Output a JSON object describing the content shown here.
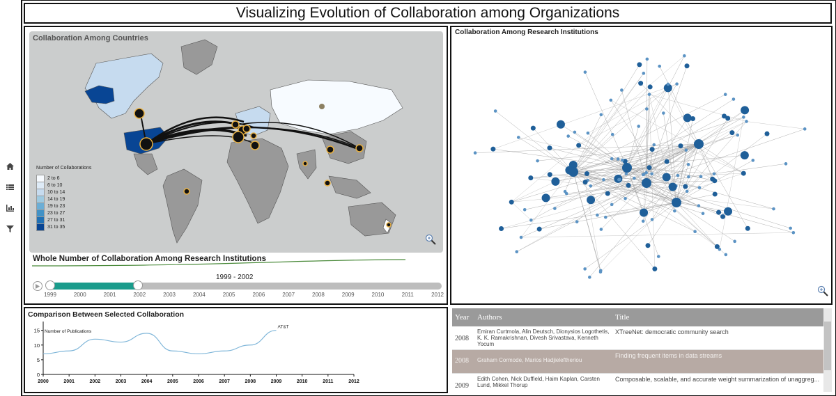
{
  "header": {
    "title": "Visualizing Evolution of Collaboration among Organizations"
  },
  "sidebar": {
    "icons": [
      "home-icon",
      "list-icon",
      "bar-chart-icon",
      "filter-icon"
    ]
  },
  "map_panel": {
    "title": "Collaboration Among Countries",
    "legend_title": "Number of Collaborations",
    "legend": [
      {
        "label": "2 to 6",
        "color": "#f7fbff"
      },
      {
        "label": "6 to 10",
        "color": "#deebf7"
      },
      {
        "label": "10 to 14",
        "color": "#c6dbef"
      },
      {
        "label": "14 to 19",
        "color": "#9ecae1"
      },
      {
        "label": "19 to 23",
        "color": "#6baed6"
      },
      {
        "label": "23 to 27",
        "color": "#4292c6"
      },
      {
        "label": "27 to 31",
        "color": "#2171b5"
      },
      {
        "label": "31 to 35",
        "color": "#084594"
      }
    ],
    "whole_title": "Whole Number of Collaboration Among Research Institutions",
    "range_label": "1999 - 2002",
    "range": [
      1999,
      2002
    ],
    "years": [
      "1999",
      "2000",
      "2001",
      "2002",
      "2003",
      "2004",
      "2005",
      "2006",
      "2007",
      "2008",
      "2009",
      "2010",
      "2011",
      "2012"
    ]
  },
  "network_panel": {
    "title": "Collaboration Among Research Institutions"
  },
  "comparison_panel": {
    "title": "Comparison Between Selected Collaboration",
    "chart_data": {
      "type": "line",
      "title": "",
      "ylabel": "Number of Publications",
      "x": [
        2000,
        2001,
        2002,
        2003,
        2004,
        2005,
        2006,
        2007,
        2008,
        2009
      ],
      "series": [
        {
          "name": "AT&T",
          "values": [
            7,
            8,
            12,
            11,
            14,
            8,
            7,
            8,
            10,
            15
          ]
        }
      ],
      "xlim": [
        2000,
        2012
      ],
      "xticks": [
        "2000",
        "2001",
        "2002",
        "2003",
        "2004",
        "2005",
        "2006",
        "2007",
        "2008",
        "2009",
        "2010",
        "2011",
        "2012"
      ],
      "ylim": [
        0,
        18
      ],
      "yticks": [
        "0",
        "5",
        "10",
        "15"
      ]
    }
  },
  "table": {
    "headers": {
      "year": "Year",
      "authors": "Authors",
      "title": "Title"
    },
    "rows": [
      {
        "year": "2008",
        "authors": "Emiran Curtmola, Alin Deutsch, Dionysios Logothetis, K. K. Ramakrishnan, Divesh Srivastava, Kenneth Yocum",
        "title": "XTreeNet: democratic community search"
      },
      {
        "year": "2008",
        "authors": "Graham Cormode, Marios Hadjieleftheriou",
        "title": "Finding frequent items in data streams"
      },
      {
        "year": "2009",
        "authors": "Edith Cohen, Nick Duffield, Haim Kaplan, Carsten Lund, Mikkel Thorup",
        "title": "Composable, scalable, and accurate weight summarization of unaggreg..."
      }
    ],
    "selected_index": 1
  },
  "colors": {
    "accent": "#1a9c8c",
    "map_bg": "#cbcdcd",
    "node": "#1f5f99"
  }
}
